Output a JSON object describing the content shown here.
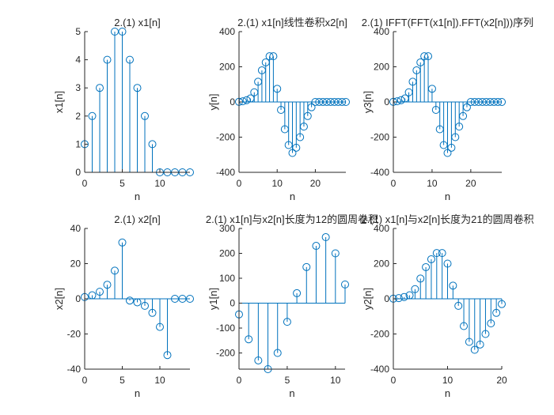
{
  "colors": {
    "stem": "#0072BD",
    "axis": "#262626",
    "background": "#ffffff"
  },
  "chart_data": [
    {
      "type": "stem",
      "title": "2.(1) x1[n]",
      "xlabel": "n",
      "ylabel": "x1[n]",
      "xlim": [
        0,
        14
      ],
      "ylim": [
        0,
        5
      ],
      "xticks": [
        0,
        5,
        10
      ],
      "yticks": [
        0,
        1,
        2,
        3,
        4,
        5
      ],
      "x": [
        0,
        1,
        2,
        3,
        4,
        5,
        6,
        7,
        8,
        9,
        10,
        11,
        12,
        13,
        14
      ],
      "y": [
        1,
        2,
        3,
        4,
        5,
        5,
        4,
        3,
        2,
        1,
        0,
        0,
        0,
        0,
        0
      ]
    },
    {
      "type": "stem",
      "title": "2.(1) x1[n]线性卷积x2[n]",
      "xlabel": "n",
      "ylabel": "y[n]",
      "xlim": [
        0,
        28
      ],
      "ylim": [
        -400,
        400
      ],
      "xticks": [
        0,
        10,
        20
      ],
      "yticks": [
        -400,
        -200,
        0,
        200,
        400
      ],
      "x": [
        0,
        1,
        2,
        3,
        4,
        5,
        6,
        7,
        8,
        9,
        10,
        11,
        12,
        13,
        14,
        15,
        16,
        17,
        18,
        19,
        20,
        21,
        22,
        23,
        24,
        25,
        26,
        27,
        28
      ],
      "y": [
        1,
        4,
        10,
        20,
        55,
        115,
        180,
        225,
        260,
        260,
        75,
        -45,
        -155,
        -245,
        -290,
        -260,
        -200,
        -140,
        -80,
        -30,
        0,
        0,
        0,
        0,
        0,
        0,
        0,
        0,
        0
      ]
    },
    {
      "type": "stem",
      "title": "2.(1) IFFT(FFT(x1[n]).FFT(x2[n]))序列",
      "xlabel": "n",
      "ylabel": "y3[n]",
      "xlim": [
        0,
        28
      ],
      "ylim": [
        -400,
        400
      ],
      "xticks": [
        0,
        10,
        20
      ],
      "yticks": [
        -400,
        -200,
        0,
        200,
        400
      ],
      "x": [
        0,
        1,
        2,
        3,
        4,
        5,
        6,
        7,
        8,
        9,
        10,
        11,
        12,
        13,
        14,
        15,
        16,
        17,
        18,
        19,
        20,
        21,
        22,
        23,
        24,
        25,
        26,
        27,
        28
      ],
      "y": [
        1,
        4,
        10,
        20,
        55,
        115,
        180,
        225,
        260,
        260,
        75,
        -45,
        -155,
        -245,
        -290,
        -260,
        -200,
        -140,
        -80,
        -30,
        0,
        0,
        0,
        0,
        0,
        0,
        0,
        0,
        0
      ]
    },
    {
      "type": "stem",
      "title": "2.(1) x2[n]",
      "xlabel": "n",
      "ylabel": "x2[n]",
      "xlim": [
        0,
        14
      ],
      "ylim": [
        -40,
        40
      ],
      "xticks": [
        0,
        5,
        10
      ],
      "yticks": [
        -40,
        -20,
        0,
        20,
        40
      ],
      "x": [
        0,
        1,
        2,
        3,
        4,
        5,
        6,
        7,
        8,
        9,
        10,
        11,
        12,
        13,
        14
      ],
      "y": [
        1,
        2,
        4,
        8,
        16,
        32,
        -1,
        -2,
        -4,
        -8,
        -16,
        -32,
        0,
        0,
        0
      ]
    },
    {
      "type": "stem",
      "title": "2.(1) x1[n]与x2[n]长度为12的圆周卷积",
      "xlabel": "n",
      "ylabel": "y1[n]",
      "xlim": [
        0,
        11
      ],
      "ylim": [
        -265,
        300
      ],
      "xticks": [
        0,
        5,
        10
      ],
      "yticks": [
        -200,
        -100,
        0,
        100,
        200,
        300
      ],
      "x": [
        0,
        1,
        2,
        3,
        4,
        5,
        6,
        7,
        8,
        9,
        10,
        11
      ],
      "y": [
        -45,
        -145,
        -230,
        -265,
        -200,
        -75,
        40,
        145,
        230,
        265,
        200,
        75
      ]
    },
    {
      "type": "stem",
      "title": "2.(1) x1[n]与x2[n]长度为21的圆周卷积",
      "xlabel": "n",
      "ylabel": "y2[n]",
      "xlim": [
        0,
        20
      ],
      "ylim": [
        -400,
        400
      ],
      "xticks": [
        0,
        10,
        20
      ],
      "yticks": [
        -400,
        -200,
        0,
        200,
        400
      ],
      "x": [
        0,
        1,
        2,
        3,
        4,
        5,
        6,
        7,
        8,
        9,
        10,
        11,
        12,
        13,
        14,
        15,
        16,
        17,
        18,
        19,
        20
      ],
      "y": [
        1,
        4,
        10,
        20,
        55,
        115,
        180,
        225,
        260,
        260,
        200,
        75,
        -40,
        -155,
        -245,
        -290,
        -260,
        -200,
        -140,
        -80,
        -30
      ]
    }
  ]
}
